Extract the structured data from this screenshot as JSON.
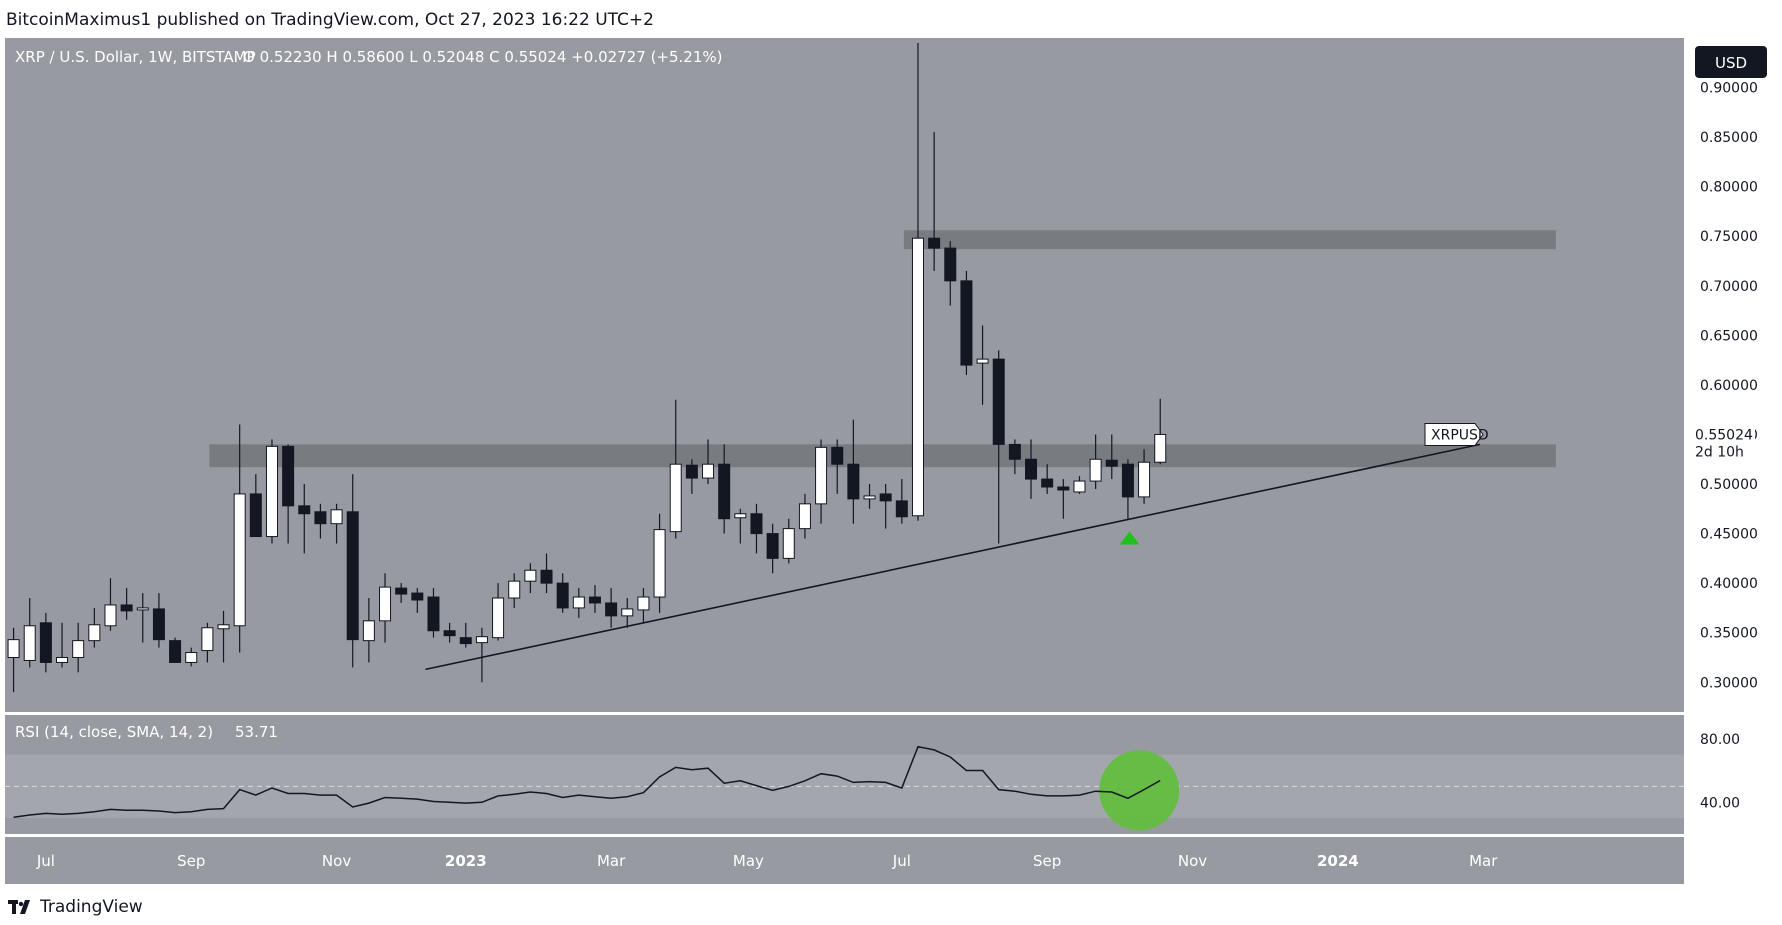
{
  "header": {
    "published_line": "BitcoinMaximus1 published on TradingView.com, Oct 27, 2023 16:22 UTC+2"
  },
  "price_pane": {
    "symbol_line": "XRP / U.S. Dollar, 1W, BITSTAMP",
    "ohlc": [
      {
        "key": "O",
        "value": "0.52230"
      },
      {
        "key": "H",
        "value": "0.58600"
      },
      {
        "key": "L",
        "value": "0.52048"
      },
      {
        "key": "C",
        "value": "0.55024"
      }
    ],
    "change": "+0.02727 (+5.21%)",
    "currency_button": "USD",
    "last_price_label": {
      "symbol": "XRPUSD",
      "price": "0.55024",
      "countdown": "2d 10h"
    }
  },
  "rsi_pane": {
    "title": "RSI (14, close, SMA, 14, 2)",
    "value": "53.71"
  },
  "footer": {
    "brand": "TradingView"
  },
  "colors": {
    "pane_bg": "#979aa1",
    "price_axis_bg": "#ffffff",
    "candle_up": "#ffffff",
    "candle_down": "#131722",
    "zone": "#707378",
    "trendline": "#131722",
    "arrow": "#22c01c",
    "highlight_circle": "#5fbf3a"
  },
  "chart_data": [
    {
      "type": "candlestick",
      "symbol": "XRPUSD",
      "timeframe": "1W",
      "ylim": [
        0.27,
        0.95
      ],
      "y_ticks": [
        "0.30000",
        "0.35000",
        "0.40000",
        "0.45000",
        "0.50000",
        "0.55000",
        "0.60000",
        "0.65000",
        "0.70000",
        "0.75000",
        "0.80000",
        "0.85000",
        "0.90000"
      ],
      "x_ticks": [
        {
          "week": 2.5,
          "label": "Jul"
        },
        {
          "week": 11.5,
          "label": "Sep"
        },
        {
          "week": 20.5,
          "label": "Nov"
        },
        {
          "week": 28.5,
          "label": "2023"
        },
        {
          "week": 37.5,
          "label": "Mar"
        },
        {
          "week": 46,
          "label": "May"
        },
        {
          "week": 55.5,
          "label": "Jul"
        },
        {
          "week": 64.5,
          "label": "Sep"
        },
        {
          "week": 73.5,
          "label": "Nov"
        },
        {
          "week": 82.5,
          "label": "2024"
        },
        {
          "week": 91.5,
          "label": "Mar"
        }
      ],
      "candles": [
        {
          "o": 0.325,
          "h": 0.355,
          "l": 0.29,
          "c": 0.343
        },
        {
          "o": 0.322,
          "h": 0.385,
          "l": 0.315,
          "c": 0.357
        },
        {
          "o": 0.36,
          "h": 0.37,
          "l": 0.31,
          "c": 0.32
        },
        {
          "o": 0.32,
          "h": 0.36,
          "l": 0.315,
          "c": 0.325
        },
        {
          "o": 0.325,
          "h": 0.36,
          "l": 0.31,
          "c": 0.342
        },
        {
          "o": 0.342,
          "h": 0.375,
          "l": 0.335,
          "c": 0.358
        },
        {
          "o": 0.357,
          "h": 0.405,
          "l": 0.352,
          "c": 0.378
        },
        {
          "o": 0.378,
          "h": 0.395,
          "l": 0.363,
          "c": 0.372
        },
        {
          "o": 0.373,
          "h": 0.39,
          "l": 0.34,
          "c": 0.375
        },
        {
          "o": 0.374,
          "h": 0.39,
          "l": 0.335,
          "c": 0.343
        },
        {
          "o": 0.342,
          "h": 0.345,
          "l": 0.32,
          "c": 0.32
        },
        {
          "o": 0.32,
          "h": 0.335,
          "l": 0.316,
          "c": 0.33
        },
        {
          "o": 0.332,
          "h": 0.36,
          "l": 0.32,
          "c": 0.355
        },
        {
          "o": 0.354,
          "h": 0.372,
          "l": 0.32,
          "c": 0.358
        },
        {
          "o": 0.357,
          "h": 0.56,
          "l": 0.33,
          "c": 0.49
        },
        {
          "o": 0.49,
          "h": 0.51,
          "l": 0.45,
          "c": 0.447
        },
        {
          "o": 0.447,
          "h": 0.545,
          "l": 0.44,
          "c": 0.538
        },
        {
          "o": 0.538,
          "h": 0.54,
          "l": 0.44,
          "c": 0.478
        },
        {
          "o": 0.478,
          "h": 0.5,
          "l": 0.43,
          "c": 0.47
        },
        {
          "o": 0.472,
          "h": 0.48,
          "l": 0.445,
          "c": 0.46
        },
        {
          "o": 0.46,
          "h": 0.48,
          "l": 0.44,
          "c": 0.474
        },
        {
          "o": 0.472,
          "h": 0.51,
          "l": 0.315,
          "c": 0.343
        },
        {
          "o": 0.342,
          "h": 0.385,
          "l": 0.32,
          "c": 0.362
        },
        {
          "o": 0.362,
          "h": 0.41,
          "l": 0.34,
          "c": 0.396
        },
        {
          "o": 0.395,
          "h": 0.4,
          "l": 0.38,
          "c": 0.389
        },
        {
          "o": 0.39,
          "h": 0.395,
          "l": 0.37,
          "c": 0.383
        },
        {
          "o": 0.386,
          "h": 0.395,
          "l": 0.345,
          "c": 0.352
        },
        {
          "o": 0.352,
          "h": 0.36,
          "l": 0.34,
          "c": 0.347
        },
        {
          "o": 0.345,
          "h": 0.36,
          "l": 0.335,
          "c": 0.339
        },
        {
          "o": 0.34,
          "h": 0.355,
          "l": 0.3,
          "c": 0.346
        },
        {
          "o": 0.345,
          "h": 0.4,
          "l": 0.342,
          "c": 0.385
        },
        {
          "o": 0.385,
          "h": 0.41,
          "l": 0.375,
          "c": 0.402
        },
        {
          "o": 0.402,
          "h": 0.42,
          "l": 0.39,
          "c": 0.413
        },
        {
          "o": 0.413,
          "h": 0.43,
          "l": 0.39,
          "c": 0.4
        },
        {
          "o": 0.4,
          "h": 0.41,
          "l": 0.37,
          "c": 0.375
        },
        {
          "o": 0.375,
          "h": 0.395,
          "l": 0.365,
          "c": 0.386
        },
        {
          "o": 0.386,
          "h": 0.398,
          "l": 0.37,
          "c": 0.38
        },
        {
          "o": 0.38,
          "h": 0.395,
          "l": 0.355,
          "c": 0.367
        },
        {
          "o": 0.367,
          "h": 0.385,
          "l": 0.355,
          "c": 0.374
        },
        {
          "o": 0.373,
          "h": 0.395,
          "l": 0.36,
          "c": 0.386
        },
        {
          "o": 0.386,
          "h": 0.47,
          "l": 0.37,
          "c": 0.454
        },
        {
          "o": 0.452,
          "h": 0.585,
          "l": 0.445,
          "c": 0.52
        },
        {
          "o": 0.519,
          "h": 0.525,
          "l": 0.49,
          "c": 0.506
        },
        {
          "o": 0.506,
          "h": 0.545,
          "l": 0.5,
          "c": 0.52
        },
        {
          "o": 0.52,
          "h": 0.54,
          "l": 0.45,
          "c": 0.465
        },
        {
          "o": 0.466,
          "h": 0.475,
          "l": 0.44,
          "c": 0.47
        },
        {
          "o": 0.47,
          "h": 0.48,
          "l": 0.43,
          "c": 0.45
        },
        {
          "o": 0.45,
          "h": 0.46,
          "l": 0.41,
          "c": 0.425
        },
        {
          "o": 0.425,
          "h": 0.465,
          "l": 0.42,
          "c": 0.455
        },
        {
          "o": 0.455,
          "h": 0.49,
          "l": 0.445,
          "c": 0.48
        },
        {
          "o": 0.48,
          "h": 0.545,
          "l": 0.46,
          "c": 0.537
        },
        {
          "o": 0.537,
          "h": 0.545,
          "l": 0.49,
          "c": 0.52
        },
        {
          "o": 0.52,
          "h": 0.565,
          "l": 0.46,
          "c": 0.485
        },
        {
          "o": 0.485,
          "h": 0.5,
          "l": 0.475,
          "c": 0.488
        },
        {
          "o": 0.49,
          "h": 0.5,
          "l": 0.455,
          "c": 0.483
        },
        {
          "o": 0.483,
          "h": 0.505,
          "l": 0.46,
          "c": 0.467
        },
        {
          "o": 0.468,
          "h": 0.945,
          "l": 0.463,
          "c": 0.748
        },
        {
          "o": 0.748,
          "h": 0.855,
          "l": 0.715,
          "c": 0.738
        },
        {
          "o": 0.738,
          "h": 0.745,
          "l": 0.68,
          "c": 0.705
        },
        {
          "o": 0.705,
          "h": 0.715,
          "l": 0.61,
          "c": 0.62
        },
        {
          "o": 0.622,
          "h": 0.66,
          "l": 0.58,
          "c": 0.626
        },
        {
          "o": 0.626,
          "h": 0.635,
          "l": 0.44,
          "c": 0.54
        },
        {
          "o": 0.54,
          "h": 0.545,
          "l": 0.51,
          "c": 0.525
        },
        {
          "o": 0.525,
          "h": 0.545,
          "l": 0.485,
          "c": 0.505
        },
        {
          "o": 0.505,
          "h": 0.52,
          "l": 0.49,
          "c": 0.497
        },
        {
          "o": 0.497,
          "h": 0.505,
          "l": 0.465,
          "c": 0.494
        },
        {
          "o": 0.492,
          "h": 0.508,
          "l": 0.49,
          "c": 0.503
        },
        {
          "o": 0.503,
          "h": 0.55,
          "l": 0.495,
          "c": 0.525
        },
        {
          "o": 0.524,
          "h": 0.55,
          "l": 0.505,
          "c": 0.518
        },
        {
          "o": 0.52,
          "h": 0.525,
          "l": 0.465,
          "c": 0.487
        },
        {
          "o": 0.487,
          "h": 0.535,
          "l": 0.48,
          "c": 0.522
        },
        {
          "o": 0.522,
          "h": 0.586,
          "l": 0.52,
          "c": 0.55
        }
      ],
      "horizontal_zones": [
        {
          "y_from": 0.517,
          "y_to": 0.54,
          "from_week": 13,
          "to_week": 96
        },
        {
          "y_from": 0.737,
          "y_to": 0.756,
          "from_week": 56,
          "to_week": 96
        }
      ],
      "trendline": {
        "from": {
          "week": 26,
          "price": 0.313
        },
        "to": {
          "week": 91.3,
          "price": 0.54
        }
      },
      "arrow_up": {
        "week": 69.6,
        "price": 0.445
      }
    },
    {
      "type": "line",
      "name": "RSI (14, close, SMA, 14, 2)",
      "ylim": [
        20,
        95
      ],
      "y_ticks": [
        "40.00",
        "80.00"
      ],
      "bands": {
        "upper": 70,
        "middle": 50,
        "lower": 30
      },
      "values": [
        30.5,
        32,
        33,
        32.5,
        33,
        34,
        35.5,
        35,
        35,
        34.5,
        33.5,
        34,
        35.5,
        36,
        48,
        44.5,
        49,
        45.5,
        45.5,
        44.5,
        44.5,
        37,
        39.5,
        43,
        42.5,
        42,
        40.5,
        40,
        39.5,
        40,
        44,
        45,
        46.5,
        45.5,
        43,
        44.5,
        43.5,
        42.5,
        43.5,
        46,
        56,
        62,
        60.5,
        61.5,
        52,
        53.5,
        50.5,
        47.5,
        50,
        53.5,
        58,
        56.5,
        52.5,
        53,
        52.5,
        49,
        75,
        73,
        68.5,
        60,
        60,
        48,
        47,
        45,
        44,
        44,
        44.5,
        47,
        46.5,
        42.5,
        48,
        53.71
      ],
      "highlight_circle": {
        "week": 69.7,
        "value": 47.5
      }
    }
  ]
}
